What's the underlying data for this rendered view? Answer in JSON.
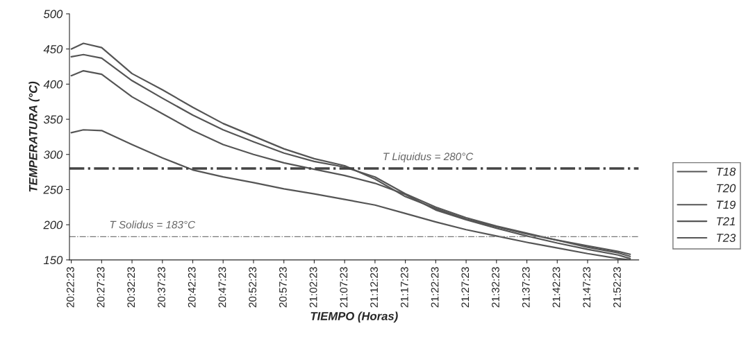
{
  "chart_data": {
    "type": "line",
    "xlabel": "TIEMPO (Horas)",
    "ylabel": "TEMPERATURA (°C)",
    "x": [
      20.3731,
      20.4064,
      20.4564,
      20.5397,
      20.6231,
      20.7064,
      20.7897,
      20.8731,
      20.9564,
      21.0397,
      21.1231,
      21.2064,
      21.2897,
      21.3731,
      21.4564,
      21.5397,
      21.6231,
      21.7064,
      21.7897,
      21.8731,
      21.9064
    ],
    "series": [
      {
        "name": "T18",
        "color": "#555555",
        "values": [
          450,
          458,
          452,
          415,
          392,
          367,
          344,
          326,
          308,
          294,
          284,
          265,
          240,
          223,
          208,
          197,
          187,
          178,
          170,
          162,
          158
        ]
      },
      {
        "name": "T20",
        "values": [
          null,
          null,
          null,
          null,
          null,
          null,
          null,
          null,
          null,
          null,
          null,
          null,
          null,
          null,
          null,
          null,
          null,
          null,
          null,
          null,
          null
        ]
      },
      {
        "name": "T19",
        "color": "#555555",
        "values": [
          439,
          442,
          437,
          405,
          380,
          356,
          335,
          318,
          302,
          290,
          282,
          268,
          244,
          225,
          210,
          198,
          188,
          178,
          168,
          160,
          155
        ]
      },
      {
        "name": "T21",
        "color": "#555555",
        "values": [
          412,
          419,
          414,
          382,
          358,
          334,
          314,
          300,
          288,
          279,
          270,
          259,
          243,
          221,
          207,
          195,
          184,
          174,
          165,
          157,
          152
        ]
      },
      {
        "name": "T23",
        "color": "#555555",
        "values": [
          331,
          335,
          334,
          314,
          295,
          278,
          268,
          260,
          251,
          244,
          236,
          228,
          216,
          204,
          193,
          184,
          175,
          167,
          159,
          152,
          150
        ]
      }
    ],
    "ref_lines": [
      {
        "axis": "y",
        "value": 280,
        "label": "T Liquidus = 280°C",
        "color": "#444444",
        "line_style": "dashdot"
      },
      {
        "axis": "y",
        "value": 183,
        "label": "T Solidus = 183°C",
        "color": "#777777",
        "line_style": "dashdot"
      }
    ],
    "xlim": [
      20.3681,
      21.93
    ],
    "xticks": [
      {
        "value": 20.3731,
        "label": "20:22:23"
      },
      {
        "value": 20.4564,
        "label": "20:27:23"
      },
      {
        "value": 20.5397,
        "label": "20:32:23"
      },
      {
        "value": 20.6231,
        "label": "20:37:23"
      },
      {
        "value": 20.7064,
        "label": "20:42:23"
      },
      {
        "value": 20.7897,
        "label": "20:47:23"
      },
      {
        "value": 20.8731,
        "label": "20:52:23"
      },
      {
        "value": 20.9564,
        "label": "20:57:23"
      },
      {
        "value": 21.0397,
        "label": "21:02:23"
      },
      {
        "value": 21.1231,
        "label": "21:07:23"
      },
      {
        "value": 21.2064,
        "label": "21:12:23"
      },
      {
        "value": 21.2897,
        "label": "21:17:23"
      },
      {
        "value": 21.3731,
        "label": "21:22:23"
      },
      {
        "value": 21.4564,
        "label": "21:27:23"
      },
      {
        "value": 21.5397,
        "label": "21:32:23"
      },
      {
        "value": 21.6231,
        "label": "21:37:23"
      },
      {
        "value": 21.7064,
        "label": "21:42:23"
      },
      {
        "value": 21.7897,
        "label": "21:47:23"
      },
      {
        "value": 21.8731,
        "label": "21:52:23"
      }
    ],
    "ylim": [
      150,
      500
    ],
    "yticks": [
      150,
      200,
      250,
      300,
      350,
      400,
      450,
      500
    ],
    "grid": false,
    "legend": "right",
    "marker": "none",
    "line_style": "solid"
  }
}
